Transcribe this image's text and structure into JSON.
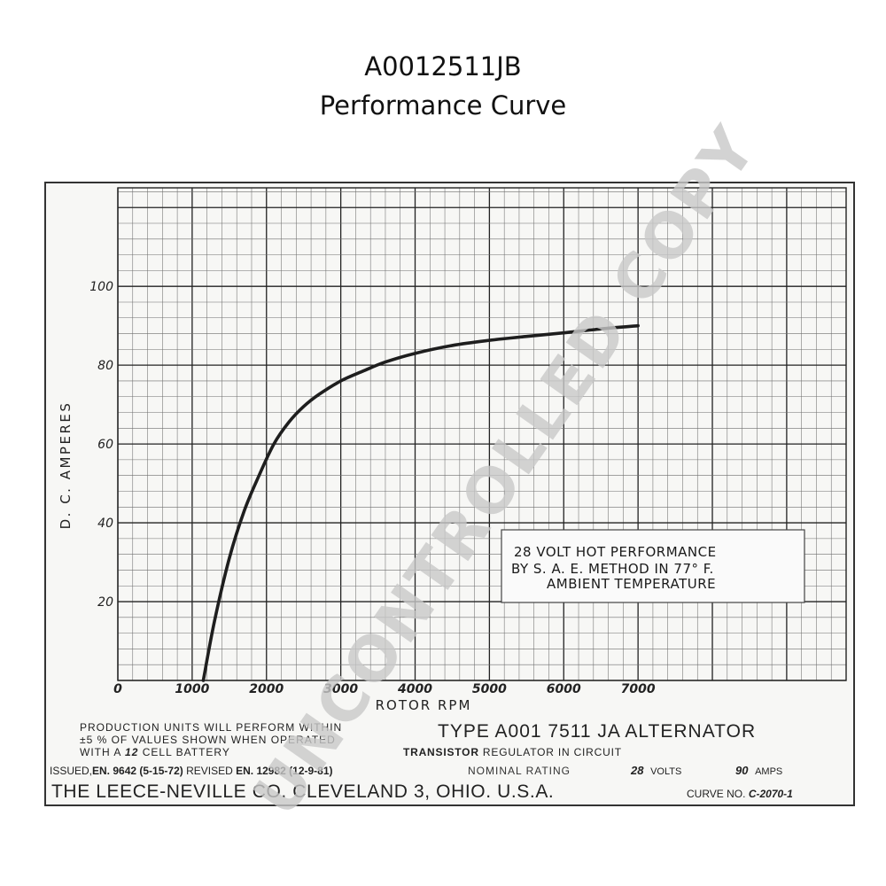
{
  "page": {
    "title_line1": "A0012511JB",
    "title_line2": "Performance Curve"
  },
  "chart_data": {
    "type": "line",
    "title": "",
    "xlabel": "ROTOR RPM",
    "ylabel": "D. C. AMPERES",
    "xlim": [
      0,
      9800
    ],
    "ylim": [
      0,
      125
    ],
    "x_ticks": [
      "0",
      "1000",
      "2000",
      "3000",
      "4000",
      "5000",
      "6000",
      "7000"
    ],
    "y_ticks": [
      "20",
      "40",
      "60",
      "80",
      "100"
    ],
    "grid": true,
    "series": [
      {
        "x": [
          1150,
          1300,
          1500,
          1700,
          1900,
          2100,
          2300,
          2500,
          2700,
          3000,
          3300,
          3600,
          4000,
          4500,
          5000,
          5500,
          6000,
          6500,
          7000
        ],
        "y": [
          0,
          15,
          31,
          43,
          52,
          60,
          65.5,
          69.5,
          72.5,
          76,
          78.5,
          80.8,
          83,
          85,
          86.3,
          87.3,
          88.2,
          89.2,
          90
        ]
      }
    ],
    "annotations": {
      "box_line1": "28  VOLT  HOT  PERFORMANCE",
      "box_line2": "BY  S. A. E.  METHOD  IN  77° F.",
      "box_line3": "AMBIENT    TEMPERATURE"
    }
  },
  "footer": {
    "production_line1": "PRODUCTION  UNITS  WILL  PERFORM  WITHIN",
    "production_line2": "±5 %  OF  VALUES  SHOWN  WHEN  OPERATED",
    "production_line3_prefix": "WITH  A",
    "production_line3_battery": "12",
    "production_line3_suffix": "CELL  BATTERY",
    "type_line": "TYPE  A001 7511  JA  ALTERNATOR",
    "regulator_bold": "TRANSISTOR",
    "regulator_rest": " REGULATOR  IN  CIRCUIT",
    "issued": "ISSUED,",
    "issued_value": "EN. 9642 (5-15-72)",
    "revised": "REVISED",
    "revised_value": "EN. 12982 (12-9-81)",
    "nominal_label": "NOMINAL  RATING",
    "volts_value": "28",
    "volts_unit": "VOLTS",
    "amps_value": "90",
    "amps_unit": "AMPS",
    "company": "THE LEECE-NEVILLE CO. CLEVELAND 3, OHIO. U.S.A.",
    "curve_label": "CURVE NO.",
    "curve_value": "C-2070-1"
  },
  "watermark": {
    "text": "UNCONTROLLED COPY",
    "color": "#c8c8c8"
  },
  "colors": {
    "grid_minor": "#6e6e6e",
    "grid_major": "#222222",
    "curve": "#1e1e1e"
  }
}
